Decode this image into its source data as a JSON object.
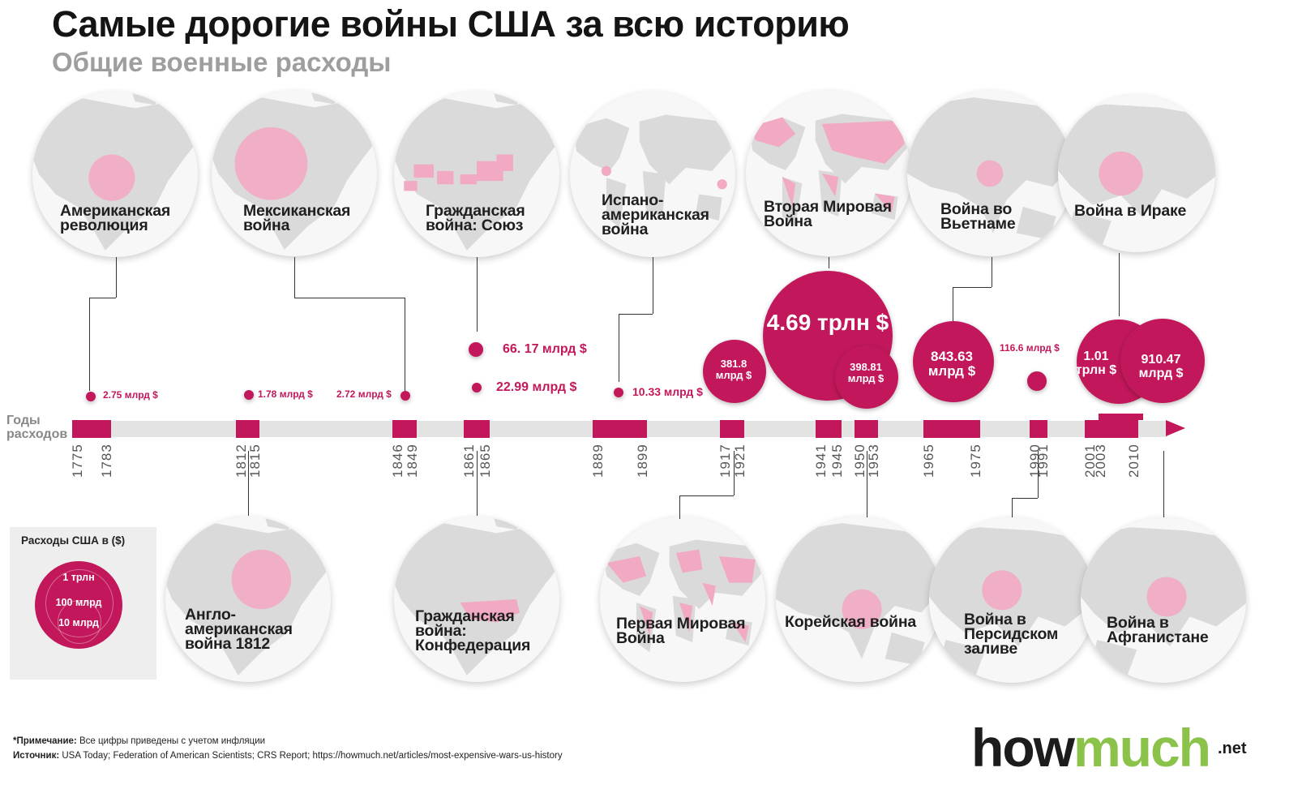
{
  "page": {
    "title": "Самые дорогие войны США за всю историю",
    "subtitle": "Общие военные расходы"
  },
  "colors": {
    "accent": "#c2185b",
    "map_land": "#dadada",
    "map_highlight": "#f2a9c4",
    "axis": "#e3e3e3"
  },
  "chart_data": {
    "type": "bubble-timeline",
    "title": "Самые дорогие войны США за всю историю",
    "subtitle": "Общие военные расходы",
    "axis_label": "Годы\nрасходов",
    "unit": "$ (с учетом инфляции)",
    "ticks": [
      "1775",
      "1783",
      "1812",
      "1815",
      "1846",
      "1849",
      "1861",
      "1865",
      "1889",
      "1899",
      "1917",
      "1921",
      "1941",
      "1945",
      "1950",
      "1953",
      "1965",
      "1975",
      "1990",
      "1991",
      "2001",
      "2003",
      "2010"
    ],
    "series": [
      {
        "war": "Американская\nреволюция",
        "start": 1775,
        "end": 1783,
        "value_billion": 2.75,
        "label": "2.75 млрд $"
      },
      {
        "war": "Англо-\nамериканская\nвойна 1812",
        "start": 1812,
        "end": 1815,
        "value_billion": 1.78,
        "label": "1.78 млрд $"
      },
      {
        "war": "Мексиканская\nвойна",
        "start": 1846,
        "end": 1849,
        "value_billion": 2.72,
        "label": "2.72 млрд $"
      },
      {
        "war": "Гражданская\nвойна: Союз",
        "start": 1861,
        "end": 1865,
        "value_billion": 66.17,
        "label": "66. 17 млрд $"
      },
      {
        "war": "Гражданская\nвойна:\nКонфедерация",
        "start": 1861,
        "end": 1865,
        "value_billion": 22.99,
        "label": "22.99 млрд $"
      },
      {
        "war": "Испано-\nамериканская\nвойна",
        "start": 1889,
        "end": 1899,
        "value_billion": 10.33,
        "label": "10.33 млрд $"
      },
      {
        "war": "Первая Мировая\nВойна",
        "start": 1917,
        "end": 1921,
        "value_billion": 381.8,
        "label": "381.8\nмлрд $"
      },
      {
        "war": "Вторая Мировая\nВойна",
        "start": 1941,
        "end": 1945,
        "value_billion": 4690,
        "label": "4.69 трлн $"
      },
      {
        "war": "Корейская война",
        "start": 1950,
        "end": 1953,
        "value_billion": 398.81,
        "label": "398.81\nмлрд $"
      },
      {
        "war": "Война во\nВьетнаме",
        "start": 1965,
        "end": 1975,
        "value_billion": 843.63,
        "label": "843.63\nмлрд $"
      },
      {
        "war": "Война в\nПерсидском\nзаливе",
        "start": 1990,
        "end": 1991,
        "value_billion": 116.6,
        "label": "116.6 млрд $"
      },
      {
        "war": "Война в\nАфганистане",
        "start": 2001,
        "end": 2010,
        "value_billion": 1010,
        "label": "1.01\nтрлн $"
      },
      {
        "war": "Война в Ираке",
        "start": 2003,
        "end": 2010,
        "value_billion": 910.47,
        "label": "910.47\nмлрд $"
      }
    ],
    "legend": {
      "title": "Расходы США в ($)",
      "levels": [
        "1 трлн",
        "100 млрд",
        "10 млрд"
      ]
    }
  },
  "footer": {
    "note_label": "*Примечание:",
    "note_text": " Все цифры приведены с учетом инфляции",
    "source_label": "Источник:",
    "source_text": " USA Today; Federation of American Scientists; CRS Report; https://howmuch.net/articles/most-expensive-wars-us-history"
  },
  "logo": {
    "part1": "how",
    "part2": "much",
    "tld": ".net"
  }
}
